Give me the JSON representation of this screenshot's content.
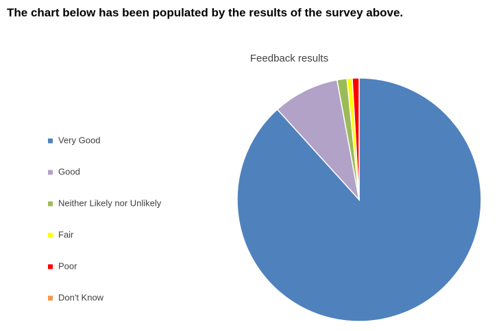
{
  "header": {
    "text": "The chart below has been populated by the results of the survey above."
  },
  "chart_data": {
    "type": "pie",
    "title": "Feedback results",
    "categories": [
      "Very Good",
      "Good",
      "Neither Likely nor Unlikely",
      "Fair",
      "Poor",
      "Don't Know"
    ],
    "values": [
      88.3,
      8.8,
      1.3,
      0.7,
      0.9,
      0
    ],
    "colors": [
      "#4f81bd",
      "#b3a2c7",
      "#9bbb59",
      "#ffff00",
      "#ff0000",
      "#f79646"
    ],
    "legend": "left"
  }
}
